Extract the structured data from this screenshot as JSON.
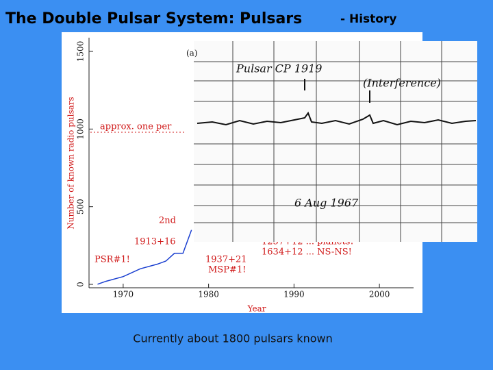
{
  "slide": {
    "title": "The Double Pulsar System: Pulsars",
    "subtitle": "- History",
    "footer": "Currently about 1800 pulsars known"
  },
  "chart_data": {
    "type": "line",
    "x_label": "Year",
    "y_label": "Number of known radio pulsars",
    "x": [
      1967,
      1968,
      1970,
      1972,
      1974,
      1975,
      1976,
      1977,
      1978
    ],
    "series": [
      {
        "name": "pulsars",
        "color": "#1a3fd0",
        "values": [
          1,
          20,
          50,
          100,
          130,
          150,
          200,
          200,
          350
        ]
      }
    ],
    "xlim": [
      1966,
      2004
    ],
    "xticks": [
      1970,
      1980,
      1990,
      2000
    ],
    "ylim": [
      0,
      1500
    ],
    "yticks": [
      0,
      500,
      1000,
      1500
    ],
    "annotations": [
      "approx. one per",
      "2nd",
      "1913+16",
      "PSR#1!",
      "1937+21",
      "MSP#1!",
      "1257+12 ... planets!",
      "1634+12 ... NS-NS!"
    ],
    "inset": {
      "panel": "(a)",
      "label": "Pulsar CP 1919",
      "note": "(Interference)",
      "date": "6 Aug 1967"
    }
  }
}
